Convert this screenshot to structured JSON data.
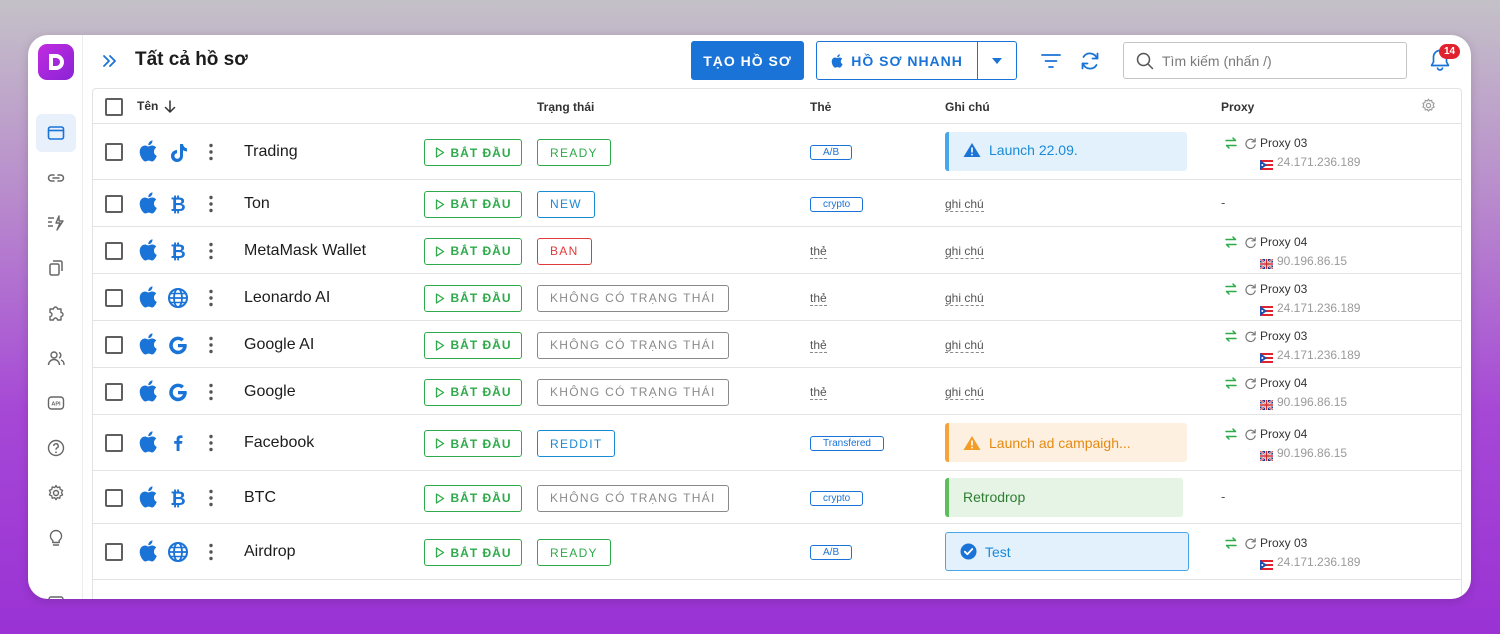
{
  "header": {
    "title": "Tất cả hồ sơ",
    "create_label": "TẠO HỒ SƠ",
    "quick_label": "HỒ SƠ NHANH",
    "search_placeholder": "Tìm kiếm (nhấn /)",
    "notification_count": "14"
  },
  "columns": {
    "name": "Tên",
    "status": "Trạng thái",
    "tag": "Thẻ",
    "note": "Ghi chú",
    "proxy": "Proxy"
  },
  "colors": {
    "primary": "#1a73d6",
    "success": "#2eaa4a",
    "danger": "#e03b3b",
    "brand": "#a22adb"
  },
  "start_label": "BẮT ĐẦU",
  "rows": [
    {
      "name": "Trading",
      "platform_icon": "tiktok-icon",
      "status": "READY",
      "status_color": "green",
      "tag": "A/B",
      "tag_style": "badge",
      "note": "Launch 22.09.",
      "note_style": "blue-warning",
      "proxy_name": "Proxy 03",
      "proxy_ip": "24.171.236.189",
      "proxy_flag": "puerto-rico"
    },
    {
      "name": "Ton",
      "platform_icon": "bitcoin-icon",
      "status": "NEW",
      "status_color": "blue",
      "tag": "crypto",
      "tag_style": "badge",
      "note": "ghi chú",
      "note_style": "placeholder",
      "proxy_name": "",
      "proxy_ip": "",
      "proxy_flag": "",
      "proxy_empty": "-"
    },
    {
      "name": "MetaMask Wallet",
      "platform_icon": "bitcoin-icon",
      "status": "BAN",
      "status_color": "red",
      "tag": "thẻ",
      "tag_style": "placeholder",
      "note": "ghi chú",
      "note_style": "placeholder",
      "proxy_name": "Proxy 04",
      "proxy_ip": "90.196.86.15",
      "proxy_flag": "uk"
    },
    {
      "name": "Leonardo AI",
      "platform_icon": "globe-icon",
      "status": "KHÔNG CÓ TRẠNG THÁI",
      "status_color": "gray",
      "tag": "thẻ",
      "tag_style": "placeholder",
      "note": "ghi chú",
      "note_style": "placeholder",
      "proxy_name": "Proxy 03",
      "proxy_ip": "24.171.236.189",
      "proxy_flag": "puerto-rico"
    },
    {
      "name": "Google AI",
      "platform_icon": "google-icon",
      "status": "KHÔNG CÓ TRẠNG THÁI",
      "status_color": "gray",
      "tag": "thẻ",
      "tag_style": "placeholder",
      "note": "ghi chú",
      "note_style": "placeholder",
      "proxy_name": "Proxy 03",
      "proxy_ip": "24.171.236.189",
      "proxy_flag": "puerto-rico"
    },
    {
      "name": "Google",
      "platform_icon": "google-icon",
      "status": "KHÔNG CÓ TRẠNG THÁI",
      "status_color": "gray",
      "tag": "thẻ",
      "tag_style": "placeholder",
      "note": "ghi chú",
      "note_style": "placeholder",
      "proxy_name": "Proxy 04",
      "proxy_ip": "90.196.86.15",
      "proxy_flag": "uk"
    },
    {
      "name": "Facebook",
      "platform_icon": "facebook-icon",
      "status": "REDDIT",
      "status_color": "blue",
      "tag": "Transfered",
      "tag_style": "badge",
      "note": "Launch ad campaigh...",
      "note_style": "orange-warning",
      "proxy_name": "Proxy 04",
      "proxy_ip": "90.196.86.15",
      "proxy_flag": "uk"
    },
    {
      "name": "BTC",
      "platform_icon": "bitcoin-icon",
      "status": "KHÔNG CÓ TRẠNG THÁI",
      "status_color": "gray",
      "tag": "crypto",
      "tag_style": "badge",
      "note": "Retrodrop",
      "note_style": "green",
      "proxy_name": "",
      "proxy_ip": "",
      "proxy_flag": "",
      "proxy_empty": "-"
    },
    {
      "name": "Airdrop",
      "platform_icon": "globe-icon",
      "status": "READY",
      "status_color": "green",
      "tag": "A/B",
      "tag_style": "badge",
      "note": "Test",
      "note_style": "blue-check",
      "proxy_name": "Proxy 03",
      "proxy_ip": "24.171.236.189",
      "proxy_flag": "puerto-rico"
    }
  ]
}
